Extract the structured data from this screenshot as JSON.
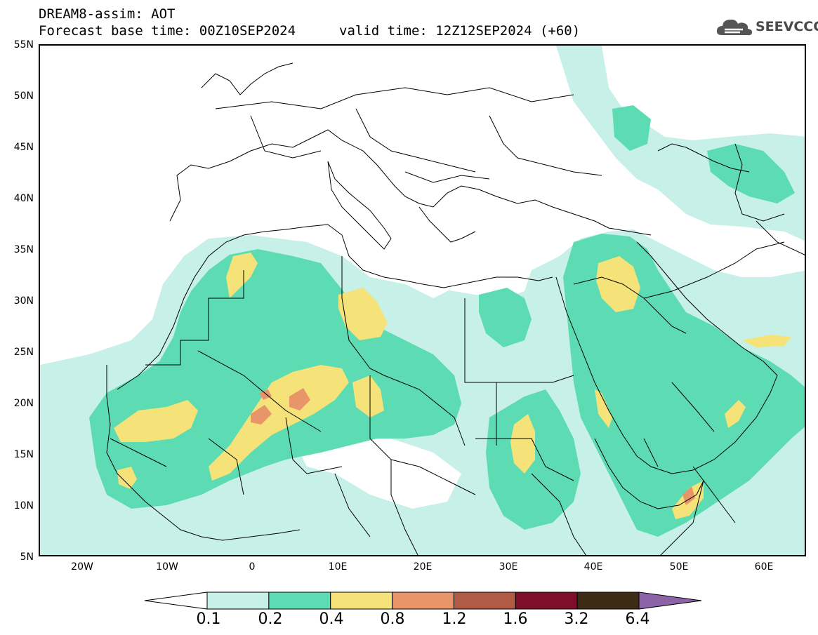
{
  "header": {
    "title": "DREAM8-assim: AOT",
    "base_time": "Forecast base time: 00Z10SEP2024",
    "valid_time": "valid time: 12Z12SEP2024 (+60)"
  },
  "logo": {
    "text": "SEEVCCC",
    "icon": "cloud-icon"
  },
  "map": {
    "lat_range": [
      5,
      55
    ],
    "lon_range": [
      -25,
      65
    ],
    "lat_labels": [
      "55N",
      "50N",
      "45N",
      "40N",
      "35N",
      "30N",
      "25N",
      "20N",
      "15N",
      "10N",
      "5N"
    ],
    "lon_labels": [
      "20W",
      "10W",
      "0",
      "10E",
      "20E",
      "30E",
      "40E",
      "50E",
      "60E"
    ],
    "field": "Aerosol Optical Thickness"
  },
  "legend": {
    "ticks": [
      "0.1",
      "0.2",
      "0.4",
      "0.8",
      "1.2",
      "1.6",
      "3.2",
      "6.4"
    ],
    "colors": [
      "#ffffff",
      "#c6f0e8",
      "#5ddcb4",
      "#f5e37a",
      "#e9956a",
      "#b05b46",
      "#7d0f2a",
      "#3e2b16",
      "#8b63a6"
    ]
  }
}
